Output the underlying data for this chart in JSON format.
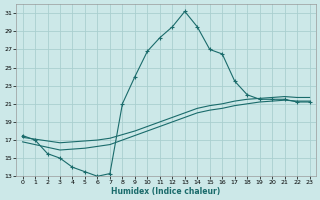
{
  "xlabel": "Humidex (Indice chaleur)",
  "bg_color": "#cce8e8",
  "grid_color": "#aacfcf",
  "line_color": "#1a6b6b",
  "xlim": [
    -0.5,
    23.5
  ],
  "ylim": [
    13,
    32
  ],
  "yticks": [
    13,
    15,
    17,
    19,
    21,
    23,
    25,
    27,
    29,
    31
  ],
  "xticks": [
    0,
    1,
    2,
    3,
    4,
    5,
    6,
    7,
    8,
    9,
    10,
    11,
    12,
    13,
    14,
    15,
    16,
    17,
    18,
    19,
    20,
    21,
    22,
    23
  ],
  "line1_x": [
    0,
    1,
    2,
    3,
    4,
    5,
    6,
    7,
    8,
    9,
    10,
    11,
    12,
    13,
    14,
    15,
    16,
    17,
    18,
    19,
    20,
    21,
    22,
    23
  ],
  "line1_y": [
    17.5,
    17.0,
    15.5,
    15.0,
    14.0,
    13.5,
    13.0,
    13.3,
    21.0,
    24.0,
    26.8,
    28.3,
    29.5,
    31.2,
    29.5,
    27.0,
    26.5,
    23.5,
    22.0,
    21.5,
    21.5,
    21.5,
    21.2,
    21.2
  ],
  "line2_x": [
    0,
    1,
    2,
    3,
    4,
    5,
    6,
    7,
    8,
    9,
    10,
    11,
    12,
    13,
    14,
    15,
    16,
    17,
    18,
    19,
    20,
    21,
    22,
    23
  ],
  "line2_y": [
    17.3,
    17.1,
    16.9,
    16.7,
    16.8,
    16.9,
    17.0,
    17.2,
    17.6,
    18.0,
    18.5,
    19.0,
    19.5,
    20.0,
    20.5,
    20.8,
    21.0,
    21.3,
    21.5,
    21.6,
    21.7,
    21.8,
    21.7,
    21.7
  ],
  "line3_x": [
    0,
    1,
    2,
    3,
    4,
    5,
    6,
    7,
    8,
    9,
    10,
    11,
    12,
    13,
    14,
    15,
    16,
    17,
    18,
    19,
    20,
    21,
    22,
    23
  ],
  "line3_y": [
    16.8,
    16.5,
    16.2,
    15.9,
    16.0,
    16.1,
    16.3,
    16.5,
    17.0,
    17.5,
    18.0,
    18.5,
    19.0,
    19.5,
    20.0,
    20.3,
    20.5,
    20.8,
    21.0,
    21.2,
    21.3,
    21.4,
    21.3,
    21.3
  ]
}
